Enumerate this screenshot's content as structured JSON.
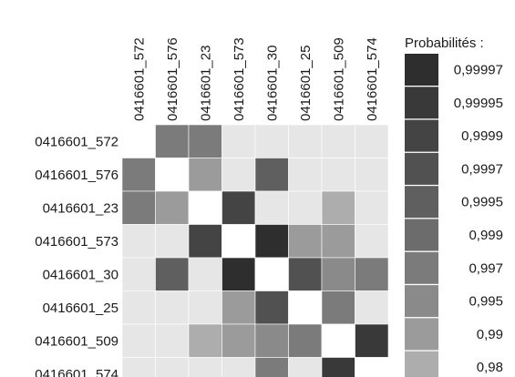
{
  "chart_data": {
    "type": "heatmap",
    "labels": [
      "0416601_572",
      "0416601_576",
      "0416601_23",
      "0416601_573",
      "0416601_30",
      "0416601_25",
      "0416601_509",
      "0416601_574"
    ],
    "legend": {
      "title": "Probabilités :",
      "levels": [
        {
          "label": "0,99997",
          "color": "#2e2e2e"
        },
        {
          "label": "0,99995",
          "color": "#393939"
        },
        {
          "label": "0,9999",
          "color": "#444444"
        },
        {
          "label": "0,9997",
          "color": "#515151"
        },
        {
          "label": "0,9995",
          "color": "#5f5f5f"
        },
        {
          "label": "0,999",
          "color": "#6c6c6c"
        },
        {
          "label": "0,997",
          "color": "#7b7b7b"
        },
        {
          "label": "0,995",
          "color": "#8a8a8a"
        },
        {
          "label": "0,99",
          "color": "#9b9b9b"
        },
        {
          "label": "0,98",
          "color": "#adadad"
        }
      ]
    },
    "below_threshold_color": "#e6e6e6",
    "diagonal_color": "#ffffff",
    "matrix": [
      [
        null,
        "0,997",
        "0,997",
        null,
        null,
        null,
        null,
        null
      ],
      [
        "0,997",
        null,
        "0,99",
        null,
        "0,9995",
        null,
        null,
        null
      ],
      [
        "0,997",
        "0,99",
        null,
        "0,9999",
        null,
        null,
        "0,98",
        null
      ],
      [
        null,
        null,
        "0,9999",
        null,
        "0,99997",
        "0,99",
        "0,99",
        null
      ],
      [
        null,
        "0,9995",
        null,
        "0,99997",
        null,
        "0,9997",
        "0,995",
        "0,997"
      ],
      [
        null,
        null,
        null,
        "0,99",
        "0,9997",
        null,
        "0,997",
        null
      ],
      [
        null,
        null,
        "0,98",
        "0,99",
        "0,995",
        "0,997",
        null,
        "0,99995"
      ],
      [
        null,
        null,
        null,
        null,
        "0,997",
        null,
        "0,99995",
        null
      ]
    ]
  }
}
